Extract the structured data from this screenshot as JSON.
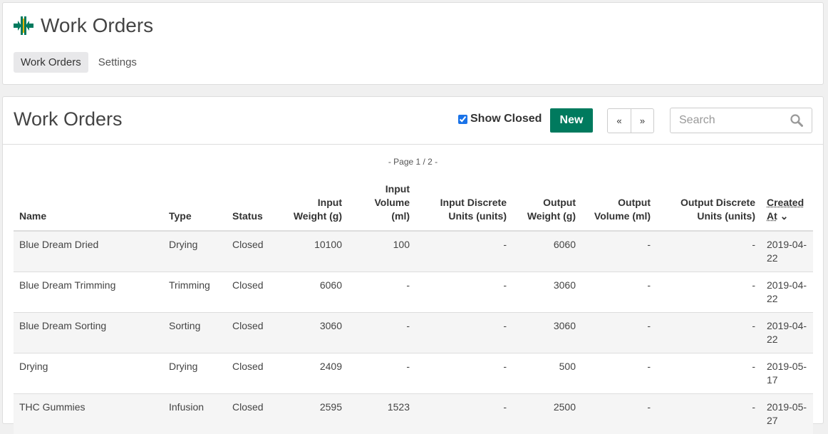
{
  "app": {
    "title": "Work Orders",
    "nav": [
      "Work Orders",
      "Settings"
    ]
  },
  "main": {
    "title": "Work Orders",
    "show_closed_label": "Show Closed",
    "show_closed": true,
    "new_label": "New",
    "prev": "«",
    "next": "»",
    "search_placeholder": "Search",
    "page_info": "- Page 1 / 2 -"
  },
  "table": {
    "headers": [
      "Name",
      "Type",
      "Status",
      "Input Weight (g)",
      "Input Volume (ml)",
      "Input Discrete Units (units)",
      "Output Weight (g)",
      "Output Volume (ml)",
      "Output Discrete Units (units)",
      "Created At"
    ],
    "rows": [
      [
        "Blue Dream Dried",
        "Drying",
        "Closed",
        "10100",
        "100",
        "-",
        "6060",
        "-",
        "-",
        "2019-04-22"
      ],
      [
        "Blue Dream Trimming",
        "Trimming",
        "Closed",
        "6060",
        "-",
        "-",
        "3060",
        "-",
        "-",
        "2019-04-22"
      ],
      [
        "Blue Dream Sorting",
        "Sorting",
        "Closed",
        "3060",
        "-",
        "-",
        "3060",
        "-",
        "-",
        "2019-04-22"
      ],
      [
        "Drying",
        "Drying",
        "Closed",
        "2409",
        "-",
        "-",
        "500",
        "-",
        "-",
        "2019-05-17"
      ],
      [
        "THC Gummies",
        "Infusion",
        "Closed",
        "2595",
        "1523",
        "-",
        "2500",
        "-",
        "-",
        "2019-05-27"
      ]
    ]
  },
  "colors": {
    "brand": "#007a5e"
  }
}
